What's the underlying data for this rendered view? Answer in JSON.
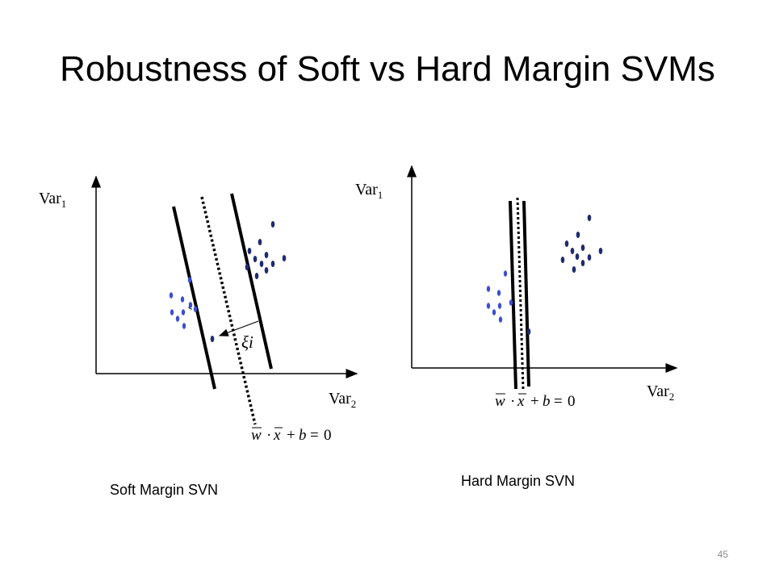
{
  "title": "Robustness of Soft vs Hard Margin SVMs",
  "panels": [
    {
      "caption": "Soft Margin SVN",
      "y_axis_label": "Var",
      "y_axis_subscript": "1",
      "x_axis_label": "Var",
      "x_axis_subscript": "2",
      "slack_label": "ξi",
      "slack_label_small": "ξ",
      "equation": {
        "w": "w",
        "dot": "·",
        "x": "x",
        "plus": "+",
        "b": "b",
        "eq": "=",
        "zero": "0"
      }
    },
    {
      "caption": "Hard Margin SVN",
      "y_axis_label": "Var",
      "y_axis_subscript": "1",
      "x_axis_label": "Var",
      "x_axis_subscript": "2",
      "equation": {
        "w": "w",
        "dot": "·",
        "x": "x",
        "plus": "+",
        "b": "b",
        "eq": "=",
        "zero": "0"
      }
    }
  ],
  "page_number": "45",
  "colors": {
    "class_a": "#1f2c6e",
    "class_b": "#3b4fd0",
    "lines": "#000000"
  }
}
